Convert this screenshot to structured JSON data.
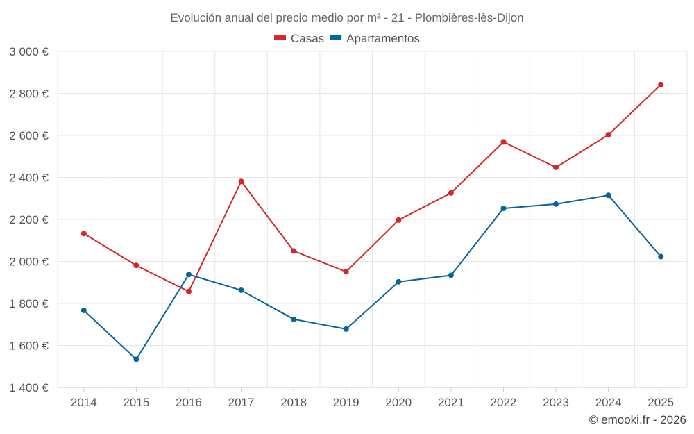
{
  "chart_data": {
    "type": "line",
    "title": "Evolución anual del precio medio por m² - 21 - Plombières-lès-Dijon",
    "categories": [
      "2014",
      "2015",
      "2016",
      "2017",
      "2018",
      "2019",
      "2020",
      "2021",
      "2022",
      "2023",
      "2024",
      "2025"
    ],
    "series": [
      {
        "name": "Casas",
        "color": "#d62728",
        "values": [
          2133,
          1981,
          1857,
          2381,
          2050,
          1951,
          2197,
          2326,
          2569,
          2448,
          2603,
          2842
        ]
      },
      {
        "name": "Apartamentos",
        "color": "#08649a",
        "values": [
          1767,
          1534,
          1938,
          1863,
          1725,
          1678,
          1903,
          1934,
          2253,
          2273,
          2315,
          2023
        ]
      }
    ],
    "ylim": [
      1400,
      3000
    ],
    "yticks": [
      1400,
      1600,
      1800,
      2000,
      2200,
      2400,
      2600,
      2800,
      3000
    ],
    "ytick_labels": [
      "1 400 €",
      "1 600 €",
      "1 800 €",
      "2 000 €",
      "2 200 €",
      "2 400 €",
      "2 600 €",
      "2 800 €",
      "3 000 €"
    ],
    "xlabel": "",
    "ylabel": "",
    "grid": true,
    "legend_position": "top-center"
  },
  "credit": "© emooki.fr - 2026"
}
